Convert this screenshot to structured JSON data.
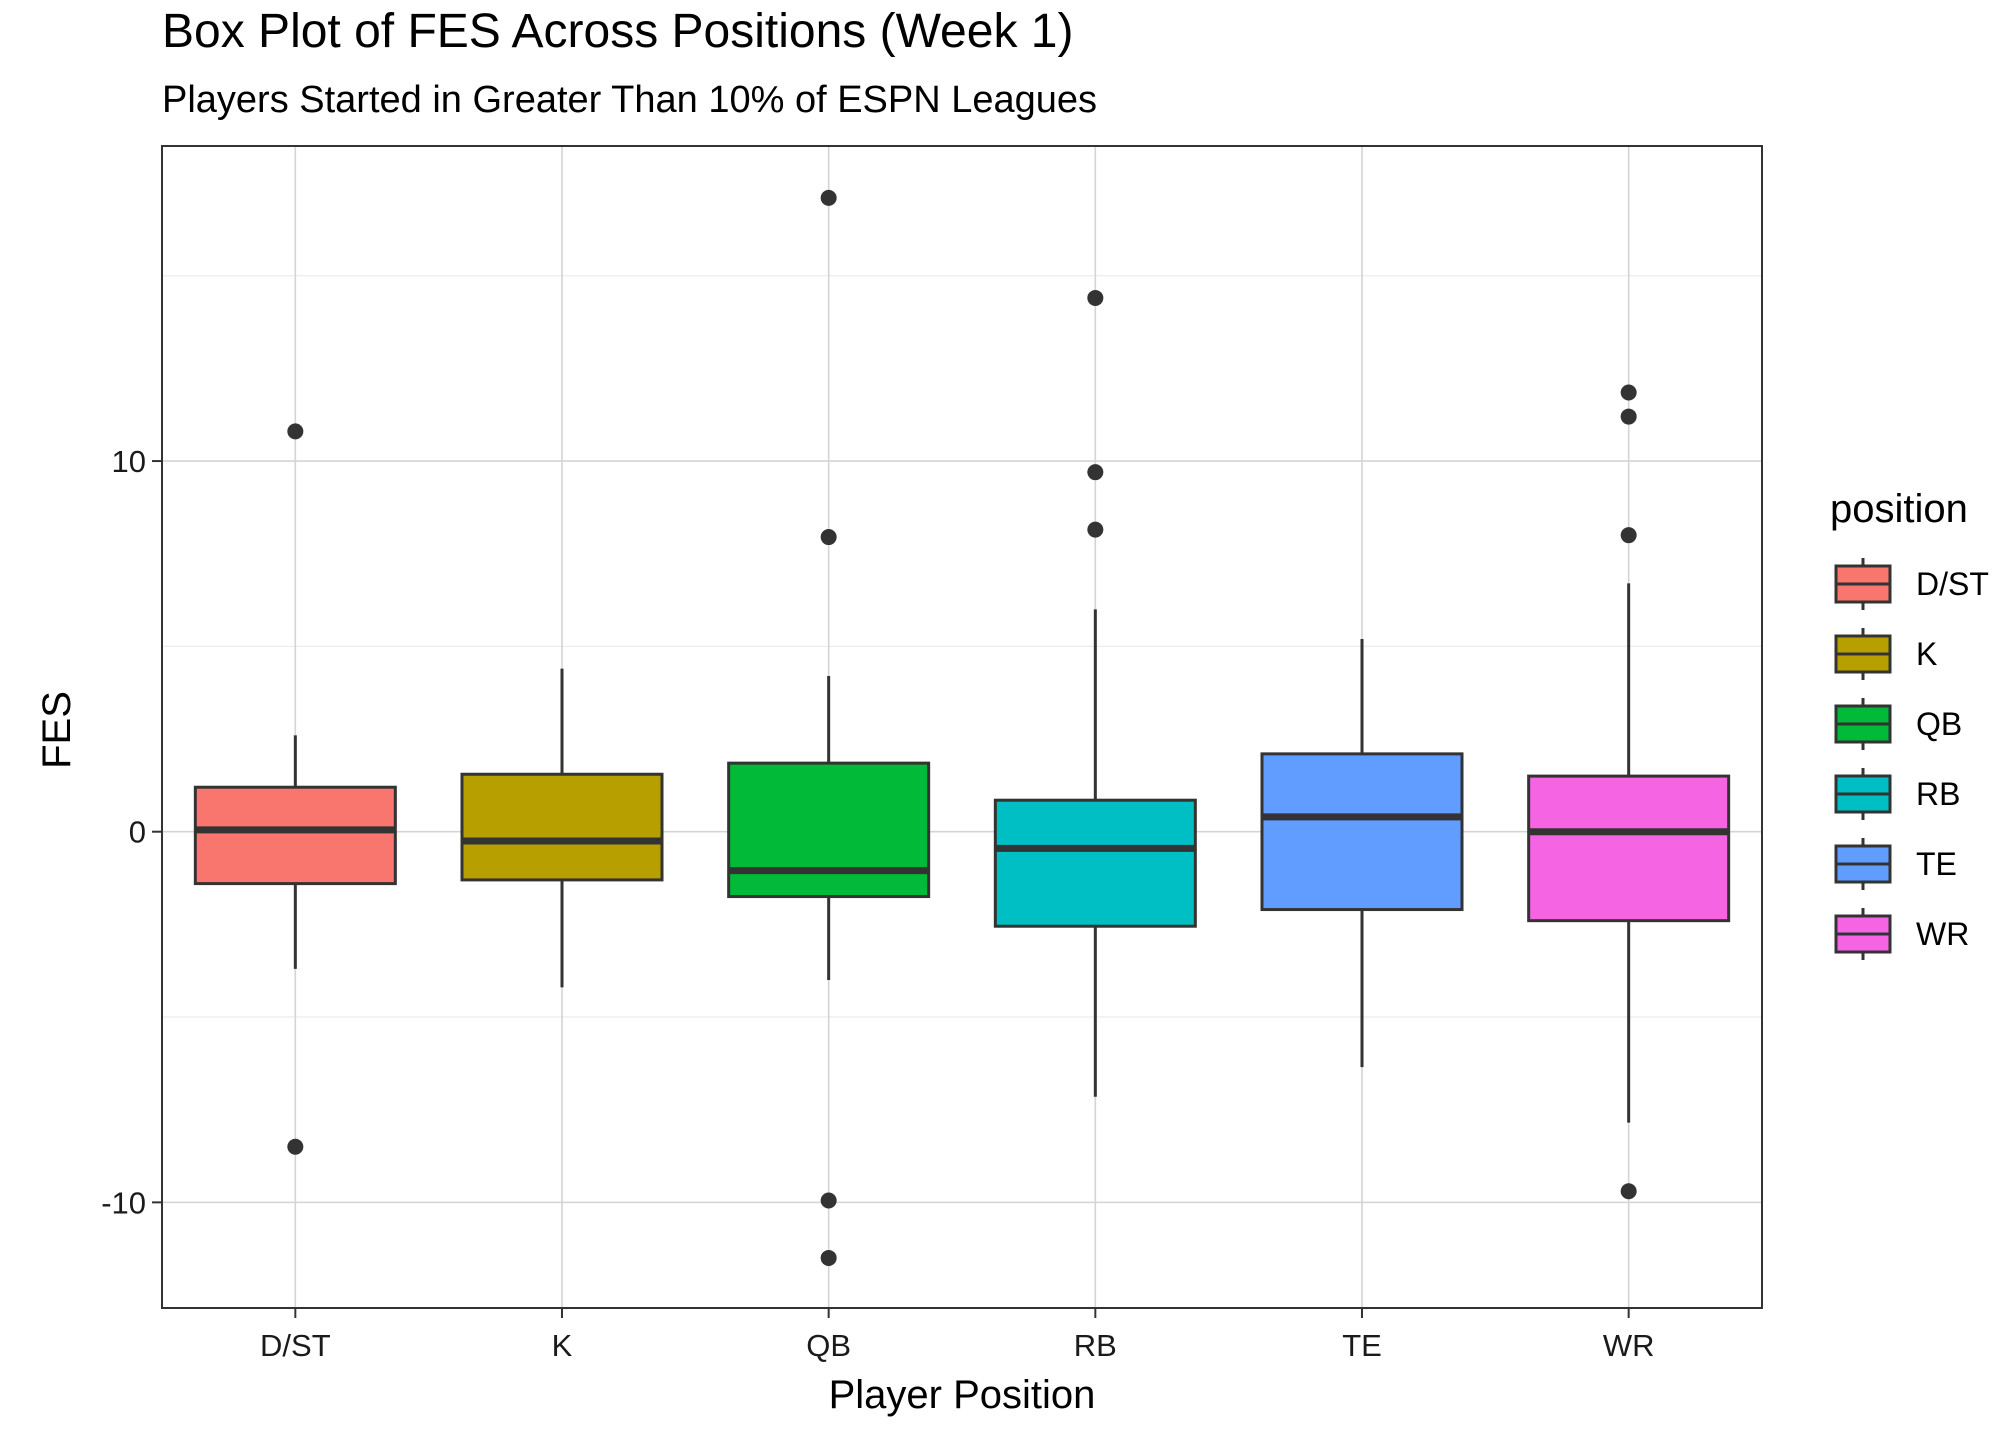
{
  "chart_data": {
    "type": "box",
    "title": "Box Plot of FES Across Positions (Week 1)",
    "subtitle": "Players Started in Greater Than 10% of ESPN Leagues",
    "xlabel": "Player Position",
    "ylabel": "FES",
    "ylim": [
      -12.85,
      18.5
    ],
    "yticks": [
      -10,
      0,
      10
    ],
    "yminor": [
      -5,
      5,
      15
    ],
    "grid": true,
    "legend": {
      "title": "position",
      "placement": "right"
    },
    "categories": [
      "D/ST",
      "K",
      "QB",
      "RB",
      "TE",
      "WR"
    ],
    "series": [
      {
        "category": "D/ST",
        "color": "#F8766D",
        "whisker_low": -3.7,
        "q1": -1.4,
        "median": 0.05,
        "q3": 1.2,
        "whisker_high": 2.6,
        "outliers": [
          10.8,
          -8.5
        ]
      },
      {
        "category": "K",
        "color": "#B79F00",
        "whisker_low": -4.2,
        "q1": -1.3,
        "median": -0.25,
        "q3": 1.55,
        "whisker_high": 4.4,
        "outliers": []
      },
      {
        "category": "QB",
        "color": "#00BA38",
        "whisker_low": -4.0,
        "q1": -1.75,
        "median": -1.05,
        "q3": 1.85,
        "whisker_high": 4.2,
        "outliers": [
          17.1,
          7.95,
          -9.95,
          -11.5
        ]
      },
      {
        "category": "RB",
        "color": "#00BFC4",
        "whisker_low": -7.15,
        "q1": -2.55,
        "median": -0.45,
        "q3": 0.85,
        "whisker_high": 6.0,
        "outliers": [
          14.4,
          9.7,
          8.15
        ]
      },
      {
        "category": "TE",
        "color": "#619CFF",
        "whisker_low": -6.35,
        "q1": -2.1,
        "median": 0.4,
        "q3": 2.1,
        "whisker_high": 5.2,
        "outliers": []
      },
      {
        "category": "WR",
        "color": "#F564E3",
        "whisker_low": -7.85,
        "q1": -2.4,
        "median": 0.0,
        "q3": 1.5,
        "whisker_high": 6.7,
        "outliers": [
          11.85,
          11.2,
          8.0,
          -9.7
        ]
      }
    ]
  }
}
